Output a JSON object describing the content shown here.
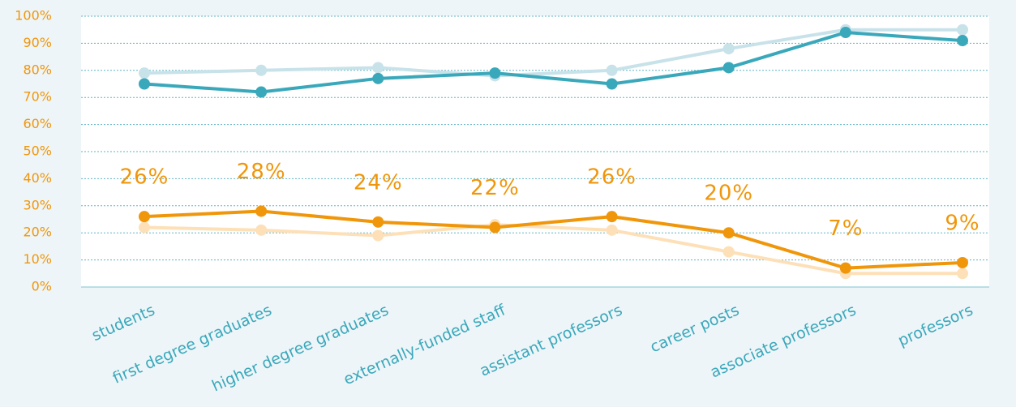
{
  "chart_data": {
    "type": "line",
    "categories": [
      "students",
      "first degree graduates",
      "higher degree graduates",
      "externally-funded staff",
      "assistant professors",
      "career posts",
      "associate professors",
      "professors"
    ],
    "series": [
      {
        "color": "#c8e2ea",
        "values": [
          79,
          80,
          81,
          78,
          80,
          88,
          95,
          95
        ]
      },
      {
        "color": "#3aa8bb",
        "values": [
          75,
          72,
          77,
          79,
          75,
          81,
          94,
          91
        ]
      },
      {
        "color": "#fde0b8",
        "values": [
          22,
          21,
          19,
          23,
          21,
          13,
          5,
          5
        ]
      },
      {
        "color": "#f0960a",
        "values": [
          26,
          28,
          24,
          22,
          26,
          20,
          7,
          9
        ],
        "value_labels": [
          "26%",
          "28%",
          "24%",
          "22%",
          "26%",
          "20%",
          "7%",
          "9%"
        ]
      }
    ],
    "ylim": [
      0,
      100
    ],
    "yticks": [
      {
        "value": 0,
        "label": "0%"
      },
      {
        "value": 10,
        "label": "10%"
      },
      {
        "value": 20,
        "label": "20%"
      },
      {
        "value": 30,
        "label": "30%"
      },
      {
        "value": 40,
        "label": "40%"
      },
      {
        "value": 50,
        "label": "50%"
      },
      {
        "value": 60,
        "label": "60%"
      },
      {
        "value": 70,
        "label": "70%"
      },
      {
        "value": 80,
        "label": "80%"
      },
      {
        "value": 90,
        "label": "90%"
      },
      {
        "value": 100,
        "label": "100%"
      }
    ],
    "grid": true
  }
}
